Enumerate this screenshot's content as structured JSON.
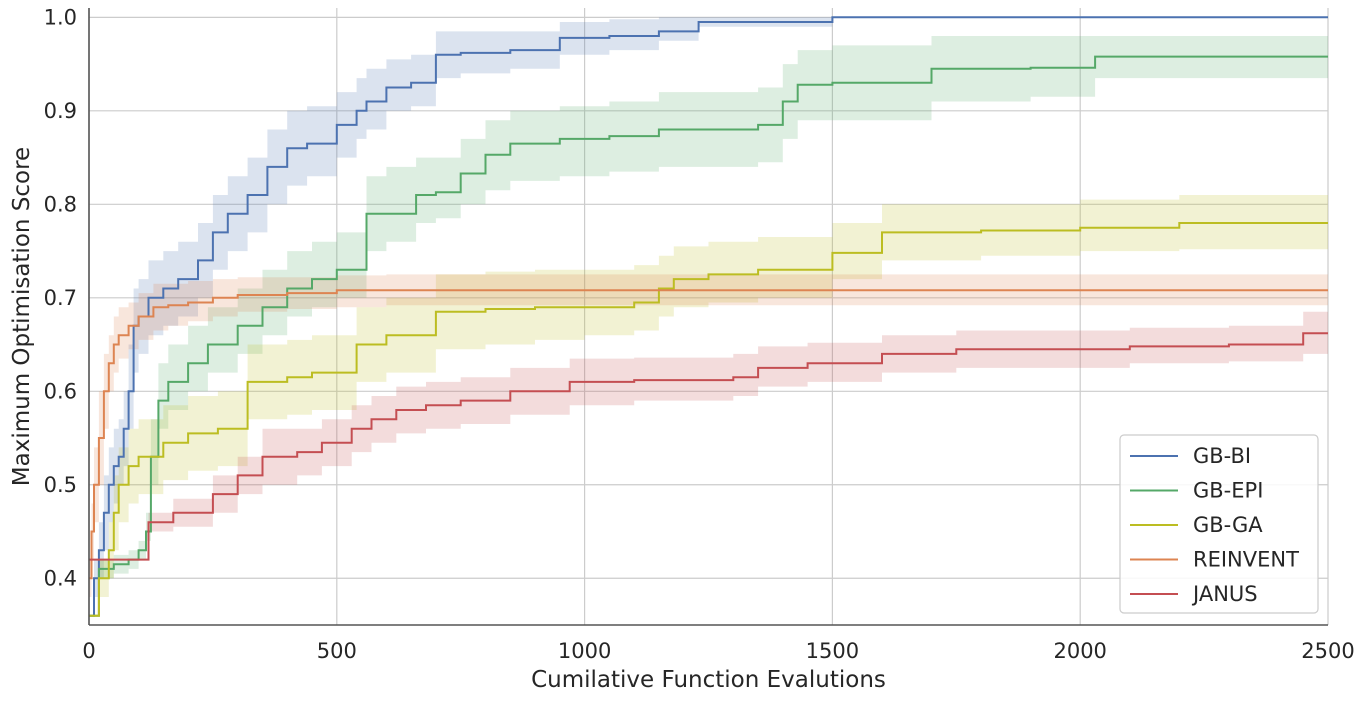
{
  "chart_data": {
    "type": "line",
    "title": "",
    "xlabel": "Cumilative Function Evalutions",
    "ylabel": "Maximum Optimisation Score",
    "xlim": [
      0,
      2500
    ],
    "ylim": [
      0.35,
      1.01
    ],
    "xticks": [
      0,
      500,
      1000,
      1500,
      2000,
      2500
    ],
    "yticks": [
      0.4,
      0.5,
      0.6,
      0.7,
      0.8,
      0.9,
      1.0
    ],
    "xtick_labels": [
      "0",
      "500",
      "1000",
      "1500",
      "2000",
      "2500"
    ],
    "ytick_labels": [
      "0.4",
      "0.5",
      "0.6",
      "0.7",
      "0.8",
      "0.9",
      "1.0"
    ],
    "grid": true,
    "legend_position": "bottom-right",
    "step": true,
    "series": [
      {
        "name": "GB-BI",
        "color": "#4c72b0",
        "x": [
          0,
          10,
          20,
          30,
          40,
          50,
          60,
          70,
          80,
          90,
          100,
          120,
          150,
          180,
          220,
          250,
          280,
          320,
          360,
          400,
          440,
          500,
          540,
          560,
          600,
          650,
          700,
          750,
          850,
          950,
          1050,
          1150,
          1230,
          1500,
          2500
        ],
        "y": [
          0.36,
          0.4,
          0.43,
          0.47,
          0.5,
          0.52,
          0.53,
          0.56,
          0.6,
          0.67,
          0.68,
          0.7,
          0.71,
          0.72,
          0.74,
          0.77,
          0.79,
          0.81,
          0.84,
          0.86,
          0.865,
          0.885,
          0.9,
          0.91,
          0.925,
          0.93,
          0.96,
          0.962,
          0.965,
          0.978,
          0.98,
          0.985,
          0.995,
          1.0,
          1.0
        ],
        "lower": [
          0.36,
          0.38,
          0.4,
          0.43,
          0.46,
          0.48,
          0.5,
          0.52,
          0.56,
          0.62,
          0.64,
          0.66,
          0.67,
          0.68,
          0.7,
          0.73,
          0.75,
          0.77,
          0.8,
          0.82,
          0.83,
          0.85,
          0.87,
          0.88,
          0.9,
          0.905,
          0.935,
          0.94,
          0.945,
          0.96,
          0.965,
          0.975,
          0.99,
          1.0,
          1.0
        ],
        "upper": [
          0.36,
          0.42,
          0.46,
          0.51,
          0.54,
          0.56,
          0.57,
          0.6,
          0.65,
          0.71,
          0.72,
          0.74,
          0.75,
          0.76,
          0.78,
          0.81,
          0.83,
          0.85,
          0.88,
          0.9,
          0.905,
          0.92,
          0.935,
          0.945,
          0.955,
          0.96,
          0.985,
          0.985,
          0.985,
          0.995,
          0.998,
          1.0,
          1.0,
          1.0,
          1.0
        ]
      },
      {
        "name": "GB-EPI",
        "color": "#55a868",
        "x": [
          0,
          20,
          50,
          80,
          100,
          115,
          125,
          140,
          160,
          200,
          240,
          300,
          350,
          400,
          450,
          500,
          560,
          600,
          660,
          700,
          750,
          800,
          850,
          950,
          1050,
          1150,
          1350,
          1400,
          1430,
          1500,
          1700,
          1900,
          2030,
          2200,
          2500
        ],
        "y": [
          0.36,
          0.41,
          0.415,
          0.42,
          0.43,
          0.45,
          0.53,
          0.59,
          0.61,
          0.63,
          0.65,
          0.67,
          0.69,
          0.71,
          0.72,
          0.73,
          0.79,
          0.79,
          0.81,
          0.813,
          0.833,
          0.853,
          0.865,
          0.87,
          0.873,
          0.88,
          0.885,
          0.91,
          0.928,
          0.93,
          0.945,
          0.946,
          0.958,
          0.958,
          0.958
        ],
        "lower": [
          0.36,
          0.4,
          0.405,
          0.41,
          0.42,
          0.44,
          0.5,
          0.56,
          0.58,
          0.6,
          0.62,
          0.64,
          0.66,
          0.68,
          0.69,
          0.7,
          0.75,
          0.76,
          0.78,
          0.785,
          0.8,
          0.815,
          0.825,
          0.83,
          0.835,
          0.84,
          0.845,
          0.87,
          0.89,
          0.89,
          0.91,
          0.915,
          0.935,
          0.935,
          0.935
        ],
        "upper": [
          0.36,
          0.42,
          0.425,
          0.43,
          0.44,
          0.47,
          0.57,
          0.63,
          0.65,
          0.67,
          0.69,
          0.71,
          0.73,
          0.75,
          0.76,
          0.77,
          0.83,
          0.84,
          0.85,
          0.85,
          0.87,
          0.89,
          0.9,
          0.905,
          0.91,
          0.92,
          0.925,
          0.95,
          0.965,
          0.97,
          0.98,
          0.98,
          0.98,
          0.98,
          0.98
        ]
      },
      {
        "name": "GB-GA",
        "color": "#bcbd22",
        "x": [
          0,
          20,
          40,
          50,
          60,
          80,
          100,
          150,
          200,
          260,
          320,
          400,
          450,
          540,
          600,
          700,
          800,
          900,
          1000,
          1100,
          1150,
          1180,
          1250,
          1350,
          1450,
          1500,
          1600,
          1800,
          2000,
          2150,
          2200,
          2500
        ],
        "y": [
          0.36,
          0.4,
          0.43,
          0.47,
          0.5,
          0.52,
          0.53,
          0.545,
          0.555,
          0.56,
          0.61,
          0.615,
          0.62,
          0.65,
          0.66,
          0.685,
          0.688,
          0.69,
          0.69,
          0.695,
          0.71,
          0.72,
          0.725,
          0.73,
          0.73,
          0.748,
          0.77,
          0.772,
          0.775,
          0.775,
          0.78,
          0.78
        ],
        "lower": [
          0.36,
          0.38,
          0.4,
          0.43,
          0.46,
          0.48,
          0.49,
          0.505,
          0.515,
          0.52,
          0.57,
          0.575,
          0.58,
          0.61,
          0.62,
          0.645,
          0.65,
          0.655,
          0.66,
          0.665,
          0.68,
          0.69,
          0.695,
          0.7,
          0.7,
          0.72,
          0.74,
          0.745,
          0.75,
          0.75,
          0.752,
          0.752
        ],
        "upper": [
          0.36,
          0.42,
          0.46,
          0.51,
          0.54,
          0.56,
          0.57,
          0.585,
          0.595,
          0.6,
          0.65,
          0.655,
          0.66,
          0.69,
          0.7,
          0.725,
          0.728,
          0.73,
          0.73,
          0.735,
          0.745,
          0.755,
          0.76,
          0.765,
          0.765,
          0.78,
          0.8,
          0.8,
          0.805,
          0.805,
          0.81,
          0.81
        ]
      },
      {
        "name": "REINVENT",
        "color": "#dd8452",
        "x": [
          0,
          5,
          10,
          20,
          30,
          40,
          50,
          60,
          80,
          100,
          130,
          160,
          200,
          250,
          300,
          400,
          500,
          600,
          2500
        ],
        "y": [
          0.4,
          0.45,
          0.5,
          0.55,
          0.6,
          0.63,
          0.65,
          0.66,
          0.67,
          0.68,
          0.69,
          0.692,
          0.695,
          0.7,
          0.703,
          0.705,
          0.708,
          0.708,
          0.708
        ],
        "lower": [
          0.38,
          0.42,
          0.46,
          0.5,
          0.56,
          0.6,
          0.62,
          0.635,
          0.645,
          0.655,
          0.665,
          0.67,
          0.675,
          0.68,
          0.685,
          0.688,
          0.69,
          0.692,
          0.692
        ],
        "upper": [
          0.42,
          0.48,
          0.54,
          0.6,
          0.64,
          0.66,
          0.68,
          0.69,
          0.695,
          0.705,
          0.715,
          0.715,
          0.718,
          0.72,
          0.722,
          0.722,
          0.724,
          0.725,
          0.725
        ]
      },
      {
        "name": "JANUS",
        "color": "#c44e52",
        "x": [
          0,
          100,
          120,
          170,
          250,
          300,
          350,
          420,
          470,
          530,
          570,
          620,
          680,
          750,
          850,
          970,
          1100,
          1300,
          1350,
          1450,
          1600,
          1750,
          1900,
          2100,
          2300,
          2450,
          2500
        ],
        "y": [
          0.42,
          0.42,
          0.46,
          0.47,
          0.49,
          0.51,
          0.53,
          0.535,
          0.545,
          0.56,
          0.57,
          0.58,
          0.585,
          0.59,
          0.6,
          0.61,
          0.612,
          0.615,
          0.625,
          0.63,
          0.64,
          0.645,
          0.645,
          0.648,
          0.65,
          0.662,
          0.662
        ],
        "lower": [
          0.42,
          0.42,
          0.45,
          0.455,
          0.47,
          0.49,
          0.5,
          0.51,
          0.52,
          0.535,
          0.545,
          0.555,
          0.56,
          0.565,
          0.575,
          0.585,
          0.59,
          0.595,
          0.605,
          0.61,
          0.62,
          0.625,
          0.625,
          0.63,
          0.632,
          0.64,
          0.64
        ],
        "upper": [
          0.42,
          0.42,
          0.47,
          0.485,
          0.51,
          0.53,
          0.56,
          0.56,
          0.57,
          0.585,
          0.595,
          0.605,
          0.61,
          0.615,
          0.625,
          0.635,
          0.636,
          0.64,
          0.648,
          0.652,
          0.66,
          0.665,
          0.665,
          0.668,
          0.67,
          0.685,
          0.685
        ]
      }
    ]
  }
}
